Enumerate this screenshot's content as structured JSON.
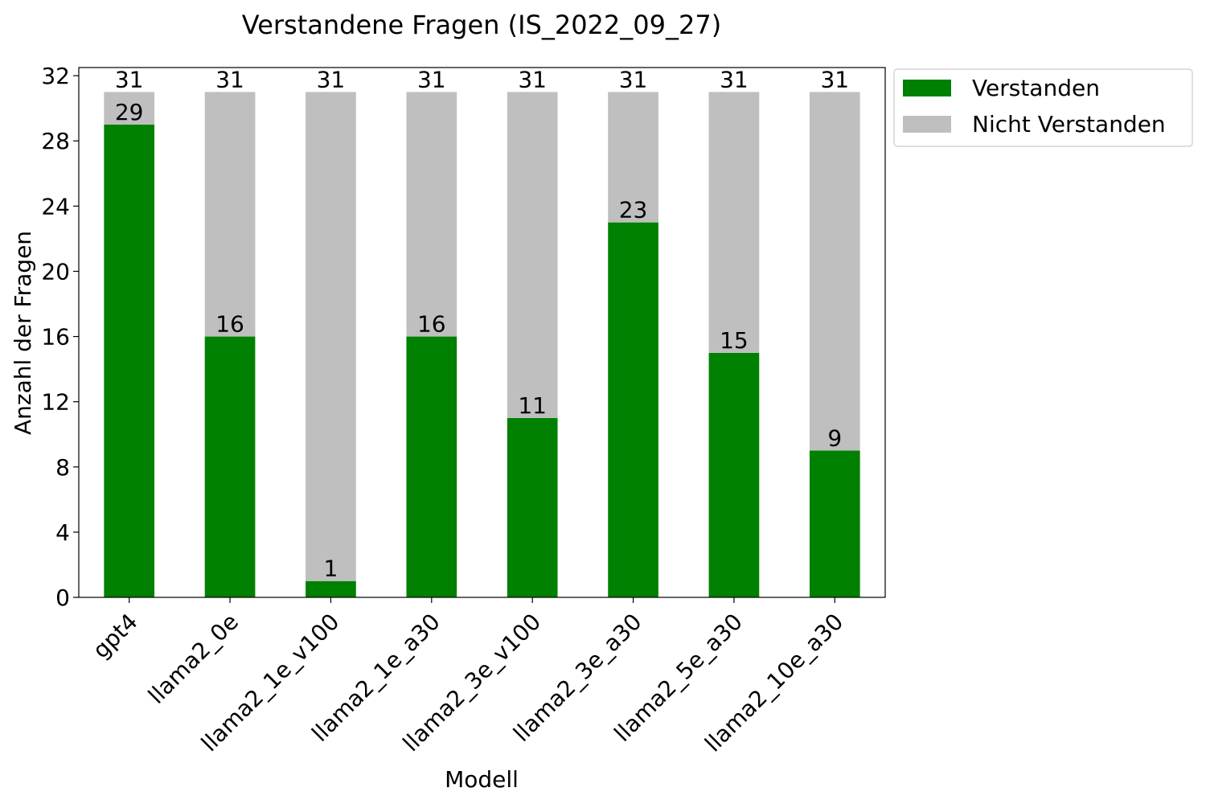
{
  "chart_data": {
    "type": "bar",
    "stacked": true,
    "title": "Verstandene Fragen (IS_2022_09_27)",
    "xlabel": "Modell",
    "ylabel": "Anzahl der Fragen",
    "categories": [
      "gpt4",
      "llama2_0e",
      "llama2_1e_v100",
      "llama2_1e_a30",
      "llama2_3e_v100",
      "llama2_3e_a30",
      "llama2_5e_a30",
      "llama2_10e_a30"
    ],
    "series": [
      {
        "name": "Verstanden",
        "color": "#008000",
        "values": [
          29,
          16,
          1,
          16,
          11,
          23,
          15,
          9
        ]
      },
      {
        "name": "Nicht Verstanden",
        "color": "#bfbfbf",
        "values": [
          2,
          15,
          30,
          15,
          20,
          8,
          16,
          22
        ]
      }
    ],
    "data_labels": {
      "verstanden": [
        "29",
        "16",
        "1",
        "16",
        "11",
        "23",
        "15",
        "9"
      ],
      "total": [
        "31",
        "31",
        "31",
        "31",
        "31",
        "31",
        "31",
        "31"
      ]
    },
    "yticks": [
      "0",
      "4",
      "8",
      "12",
      "16",
      "20",
      "24",
      "28",
      "32"
    ],
    "ylim": [
      0,
      32.5
    ],
    "grid": false,
    "legend_position": "outside-top-right"
  }
}
